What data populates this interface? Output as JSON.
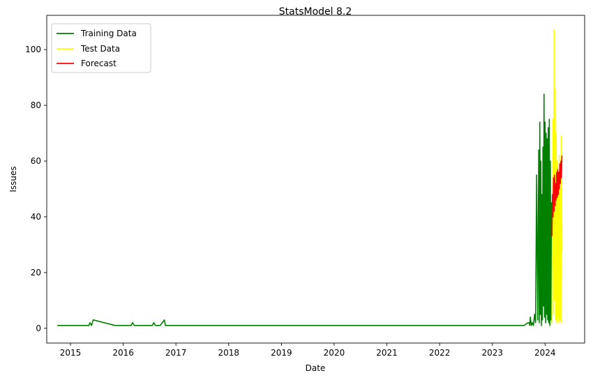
{
  "chart_data": {
    "type": "line",
    "title": "StatsModel 8.2",
    "xlabel": "Date",
    "ylabel": "Issues",
    "xlim": [
      2014.55,
      2024.75
    ],
    "ylim": [
      -5.3,
      112.3
    ],
    "x_ticks": [
      2015,
      2016,
      2017,
      2018,
      2019,
      2020,
      2021,
      2022,
      2023,
      2024
    ],
    "x_tick_labels": [
      "2015",
      "2016",
      "2017",
      "2018",
      "2019",
      "2020",
      "2021",
      "2022",
      "2023",
      "2024"
    ],
    "y_ticks": [
      0,
      20,
      40,
      60,
      80,
      100
    ],
    "y_tick_labels": [
      "0",
      "20",
      "40",
      "60",
      "80",
      "100"
    ],
    "grid": false,
    "legend_position": "top-left",
    "series": [
      {
        "name": "Training Data",
        "color": "#008000",
        "x": [
          2014.75,
          2015.35,
          2015.37,
          2015.4,
          2015.43,
          2015.85,
          2016.15,
          2016.18,
          2016.21,
          2016.24,
          2016.55,
          2016.58,
          2016.61,
          2016.64,
          2016.7,
          2016.78,
          2016.8,
          2023.6,
          2023.68,
          2023.7,
          2023.71,
          2023.72,
          2023.74,
          2023.76,
          2023.78,
          2023.8,
          2023.82,
          2023.84,
          2023.86,
          2023.88,
          2023.89,
          2023.9,
          2023.91,
          2023.92,
          2023.93,
          2023.94,
          2023.95,
          2023.96,
          2023.97,
          2023.98,
          2023.99,
          2024.0,
          2024.01,
          2024.02,
          2024.03,
          2024.04,
          2024.05,
          2024.06,
          2024.07,
          2024.08,
          2024.09,
          2024.1,
          2024.11,
          2024.12,
          2024.13
        ],
        "values": [
          1,
          1,
          2,
          1,
          3,
          1,
          1,
          2,
          1,
          1,
          1,
          2,
          1,
          1,
          1,
          3,
          1,
          1,
          2,
          2,
          1,
          4,
          1,
          2,
          1,
          5,
          2,
          55,
          3,
          64,
          2,
          74,
          5,
          60,
          1,
          48,
          3,
          65,
          8,
          84,
          4,
          74,
          2,
          70,
          5,
          68,
          3,
          72,
          2,
          75,
          1,
          60,
          3,
          45,
          2
        ]
      },
      {
        "name": "Test Data",
        "color": "#ffff00",
        "x": [
          2024.13,
          2024.15,
          2024.16,
          2024.17,
          2024.18,
          2024.19,
          2024.2,
          2024.21,
          2024.22,
          2024.23,
          2024.24,
          2024.25,
          2024.26,
          2024.27,
          2024.28,
          2024.29,
          2024.3,
          2024.31,
          2024.32
        ],
        "values": [
          2,
          75,
          5,
          107,
          10,
          86,
          3,
          70,
          2,
          60,
          4,
          55,
          2,
          62,
          3,
          50,
          2,
          69,
          28
        ]
      },
      {
        "name": "Forecast",
        "color": "#ff0000",
        "x": [
          2024.13,
          2024.14,
          2024.15,
          2024.16,
          2024.17,
          2024.18,
          2024.19,
          2024.2,
          2024.21,
          2024.22,
          2024.23,
          2024.24,
          2024.25,
          2024.26,
          2024.27,
          2024.28,
          2024.29,
          2024.3,
          2024.31,
          2024.32
        ],
        "values": [
          33,
          48,
          40,
          54,
          42,
          55,
          44,
          52,
          46,
          56,
          47,
          57,
          48,
          56,
          50,
          59,
          52,
          60,
          54,
          62
        ]
      }
    ]
  }
}
